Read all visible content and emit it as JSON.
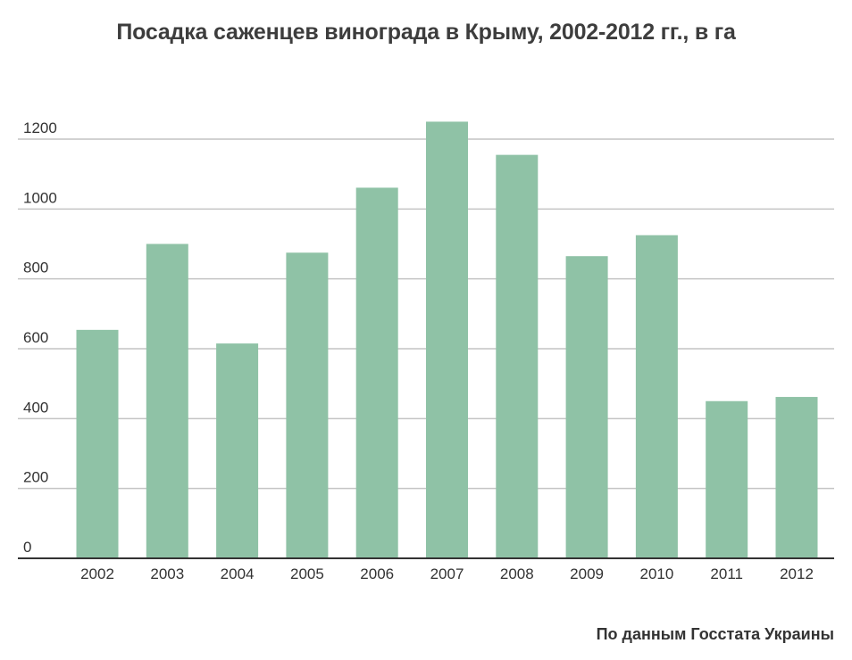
{
  "chart_data": {
    "type": "bar",
    "title": "Посадка саженцев винограда в Крыму, 2002-2012 гг., в га",
    "xlabel": "",
    "ylabel": "",
    "categories": [
      "2002",
      "2003",
      "2004",
      "2005",
      "2006",
      "2007",
      "2008",
      "2009",
      "2010",
      "2011",
      "2012"
    ],
    "values": [
      654,
      900,
      615,
      875,
      1061,
      1250,
      1155,
      865,
      925,
      450,
      462
    ],
    "ylim": [
      0,
      1200
    ],
    "yticks": [
      "0",
      "200",
      "400",
      "600",
      "800",
      "1000",
      "1200"
    ],
    "grid": true,
    "bar_color": "#8fc2a6"
  },
  "footer": {
    "source": "По данным Госстата Украины"
  }
}
